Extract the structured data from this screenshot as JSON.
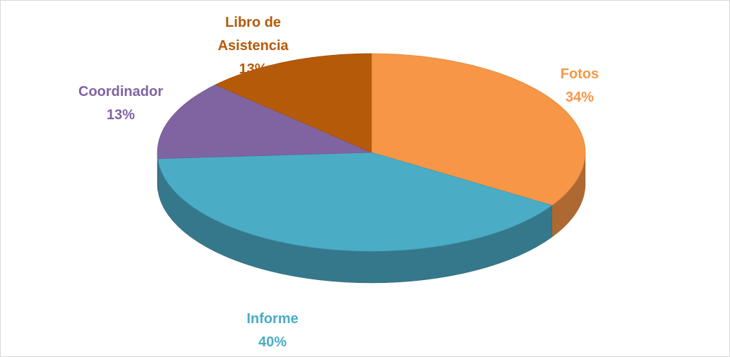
{
  "chart_data": {
    "type": "pie",
    "categories": [
      "Fotos",
      "Informe",
      "Coordinador",
      "Libro de Asistencia"
    ],
    "values": [
      34,
      40,
      13,
      13
    ],
    "value_labels": [
      "34%",
      "40%",
      "13%",
      "13%"
    ],
    "colors": [
      "#f79646",
      "#4bacc6",
      "#8064a2",
      "#b55a09"
    ]
  }
}
